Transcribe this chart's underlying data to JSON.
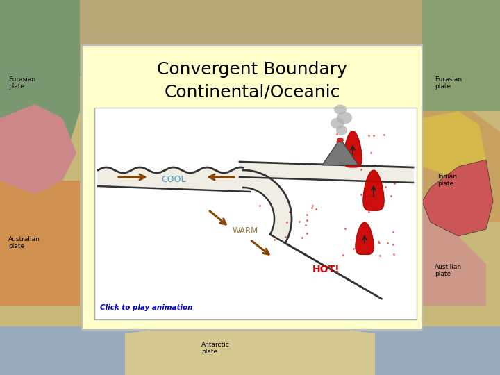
{
  "title1": "Convergent Boundary",
  "title2": "Continental/Oceanic",
  "box_bg": "#ffffcc",
  "diagram_bg": "#ffffff",
  "title_color": "#000000",
  "cool_text_color": "#4499cc",
  "warm_text_color": "#997744",
  "hot_text_color": "#cc0000",
  "arrow_color": "#884400",
  "lava_color": "#cc0000",
  "click_text_color": "#0000cc",
  "click_text": "Click to play animation",
  "plate_line_color": "#333333",
  "map_bg": "#c8b87a",
  "map_left_green": "#7a9870",
  "map_right_tan": "#c8a060",
  "map_bottom_blue": "#9aacbc",
  "map_red_left": "#cc8888",
  "map_red_right": "#cc6666",
  "map_indian_red": "#cc5555",
  "map_yellow_right": "#d4b84a",
  "map_orange_bottom": "#d4a060"
}
